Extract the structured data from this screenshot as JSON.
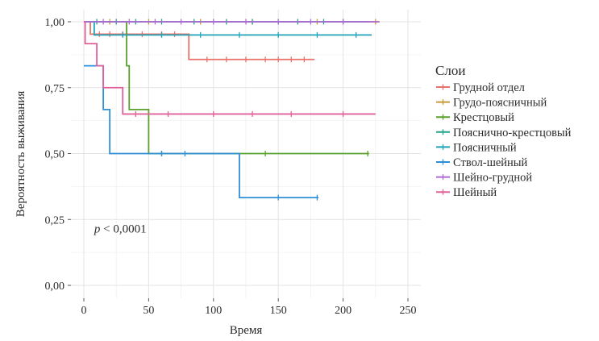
{
  "chart_data": {
    "type": "line",
    "subtype": "kaplan-meier",
    "xlabel": "Время",
    "ylabel": "Вероятность выживания",
    "xlim": [
      0,
      250
    ],
    "ylim": [
      0,
      1
    ],
    "xticks": [
      0,
      50,
      100,
      150,
      200,
      250
    ],
    "xtick_labels": [
      "0",
      "50",
      "100",
      "150",
      "200",
      "250"
    ],
    "yticks": [
      0,
      0.25,
      0.5,
      0.75,
      1.0
    ],
    "ytick_labels": [
      "0,00",
      "0,25",
      "0,50",
      "0,75",
      "1,00"
    ],
    "grid": true,
    "legend_title": "Слои",
    "legend_position": "right",
    "annotation": {
      "italic": "p",
      "text": " < 0,0001",
      "x": 8,
      "y": 0.2
    },
    "series": [
      {
        "name": "Грудной отдел",
        "color": "#e8726a",
        "steps": [
          [
            0,
            1.0
          ],
          [
            5,
            0.953
          ],
          [
            81,
            0.857
          ],
          [
            178,
            0.857
          ]
        ],
        "censor": [
          12,
          20,
          30,
          45,
          60,
          70,
          95,
          110,
          125,
          140,
          150,
          160,
          170
        ]
      },
      {
        "name": "Грудо-поясничный",
        "color": "#c79a3a",
        "steps": [
          [
            0,
            1.0
          ],
          [
            228,
            1.0
          ]
        ],
        "censor": [
          20,
          50,
          90,
          130,
          180,
          225
        ]
      },
      {
        "name": "Крестцовый",
        "color": "#5aa02c",
        "steps": [
          [
            0,
            1.0
          ],
          [
            33,
            0.833
          ],
          [
            35,
            0.667
          ],
          [
            50,
            0.5
          ],
          [
            220,
            0.5
          ]
        ],
        "censor": [
          60,
          140,
          219
        ]
      },
      {
        "name": "Пояснично-крестцовый",
        "color": "#23a38a",
        "steps": [
          [
            0,
            1.0
          ],
          [
            220,
            1.0
          ]
        ],
        "censor": [
          10,
          25,
          40,
          60,
          85,
          110,
          130,
          150,
          165,
          185,
          200
        ]
      },
      {
        "name": "Поясничный",
        "color": "#1fa3b8",
        "steps": [
          [
            0,
            1.0
          ],
          [
            8,
            0.95
          ],
          [
            222,
            0.95
          ]
        ],
        "censor": [
          30,
          60,
          90,
          120,
          150,
          180,
          210
        ]
      },
      {
        "name": "Ствол-шейный",
        "color": "#2f8fd6",
        "steps": [
          [
            0,
            0.833
          ],
          [
            12,
            0.833
          ],
          [
            15,
            0.667
          ],
          [
            20,
            0.5
          ],
          [
            119,
            0.5
          ],
          [
            120,
            0.333
          ],
          [
            181,
            0.333
          ]
        ],
        "censor": [
          60,
          78,
          150,
          180
        ]
      },
      {
        "name": "Шейно-грудной",
        "color": "#b06ad6",
        "steps": [
          [
            0,
            1.0
          ],
          [
            228,
            1.0
          ]
        ],
        "censor": [
          15,
          35,
          55,
          75,
          100,
          125,
          150,
          175,
          200
        ]
      },
      {
        "name": "Шейный",
        "color": "#e0609a",
        "steps": [
          [
            0,
            1.0
          ],
          [
            1,
            0.917
          ],
          [
            10,
            0.833
          ],
          [
            15,
            0.75
          ],
          [
            25,
            0.75
          ],
          [
            30,
            0.65
          ],
          [
            225,
            0.65
          ]
        ],
        "censor": [
          40,
          65,
          100,
          130,
          160,
          200
        ]
      }
    ]
  }
}
